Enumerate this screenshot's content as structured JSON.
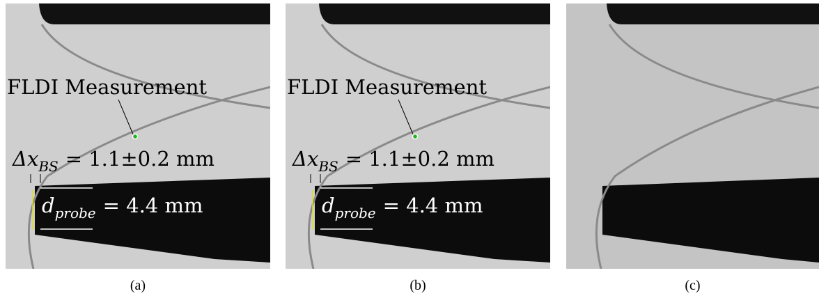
{
  "figure": {
    "panels": [
      {
        "label": "(a)",
        "measurement": "FLDI Measurement",
        "standoff": {
          "symbol": "Δx",
          "subscript": "BS",
          "value": "= 1.1±0.2 mm"
        },
        "probe": {
          "symbol": "d",
          "subscript": "probe",
          "value": "= 4.4 mm"
        }
      },
      {
        "label": "(b)",
        "measurement": "FLDI Measurement",
        "standoff": {
          "symbol": "Δx",
          "subscript": "BS",
          "value": "= 1.1±0.2 mm"
        },
        "probe": {
          "symbol": "d",
          "subscript": "probe",
          "value": "= 4.4 mm"
        }
      },
      {
        "label": "(c)"
      }
    ]
  }
}
